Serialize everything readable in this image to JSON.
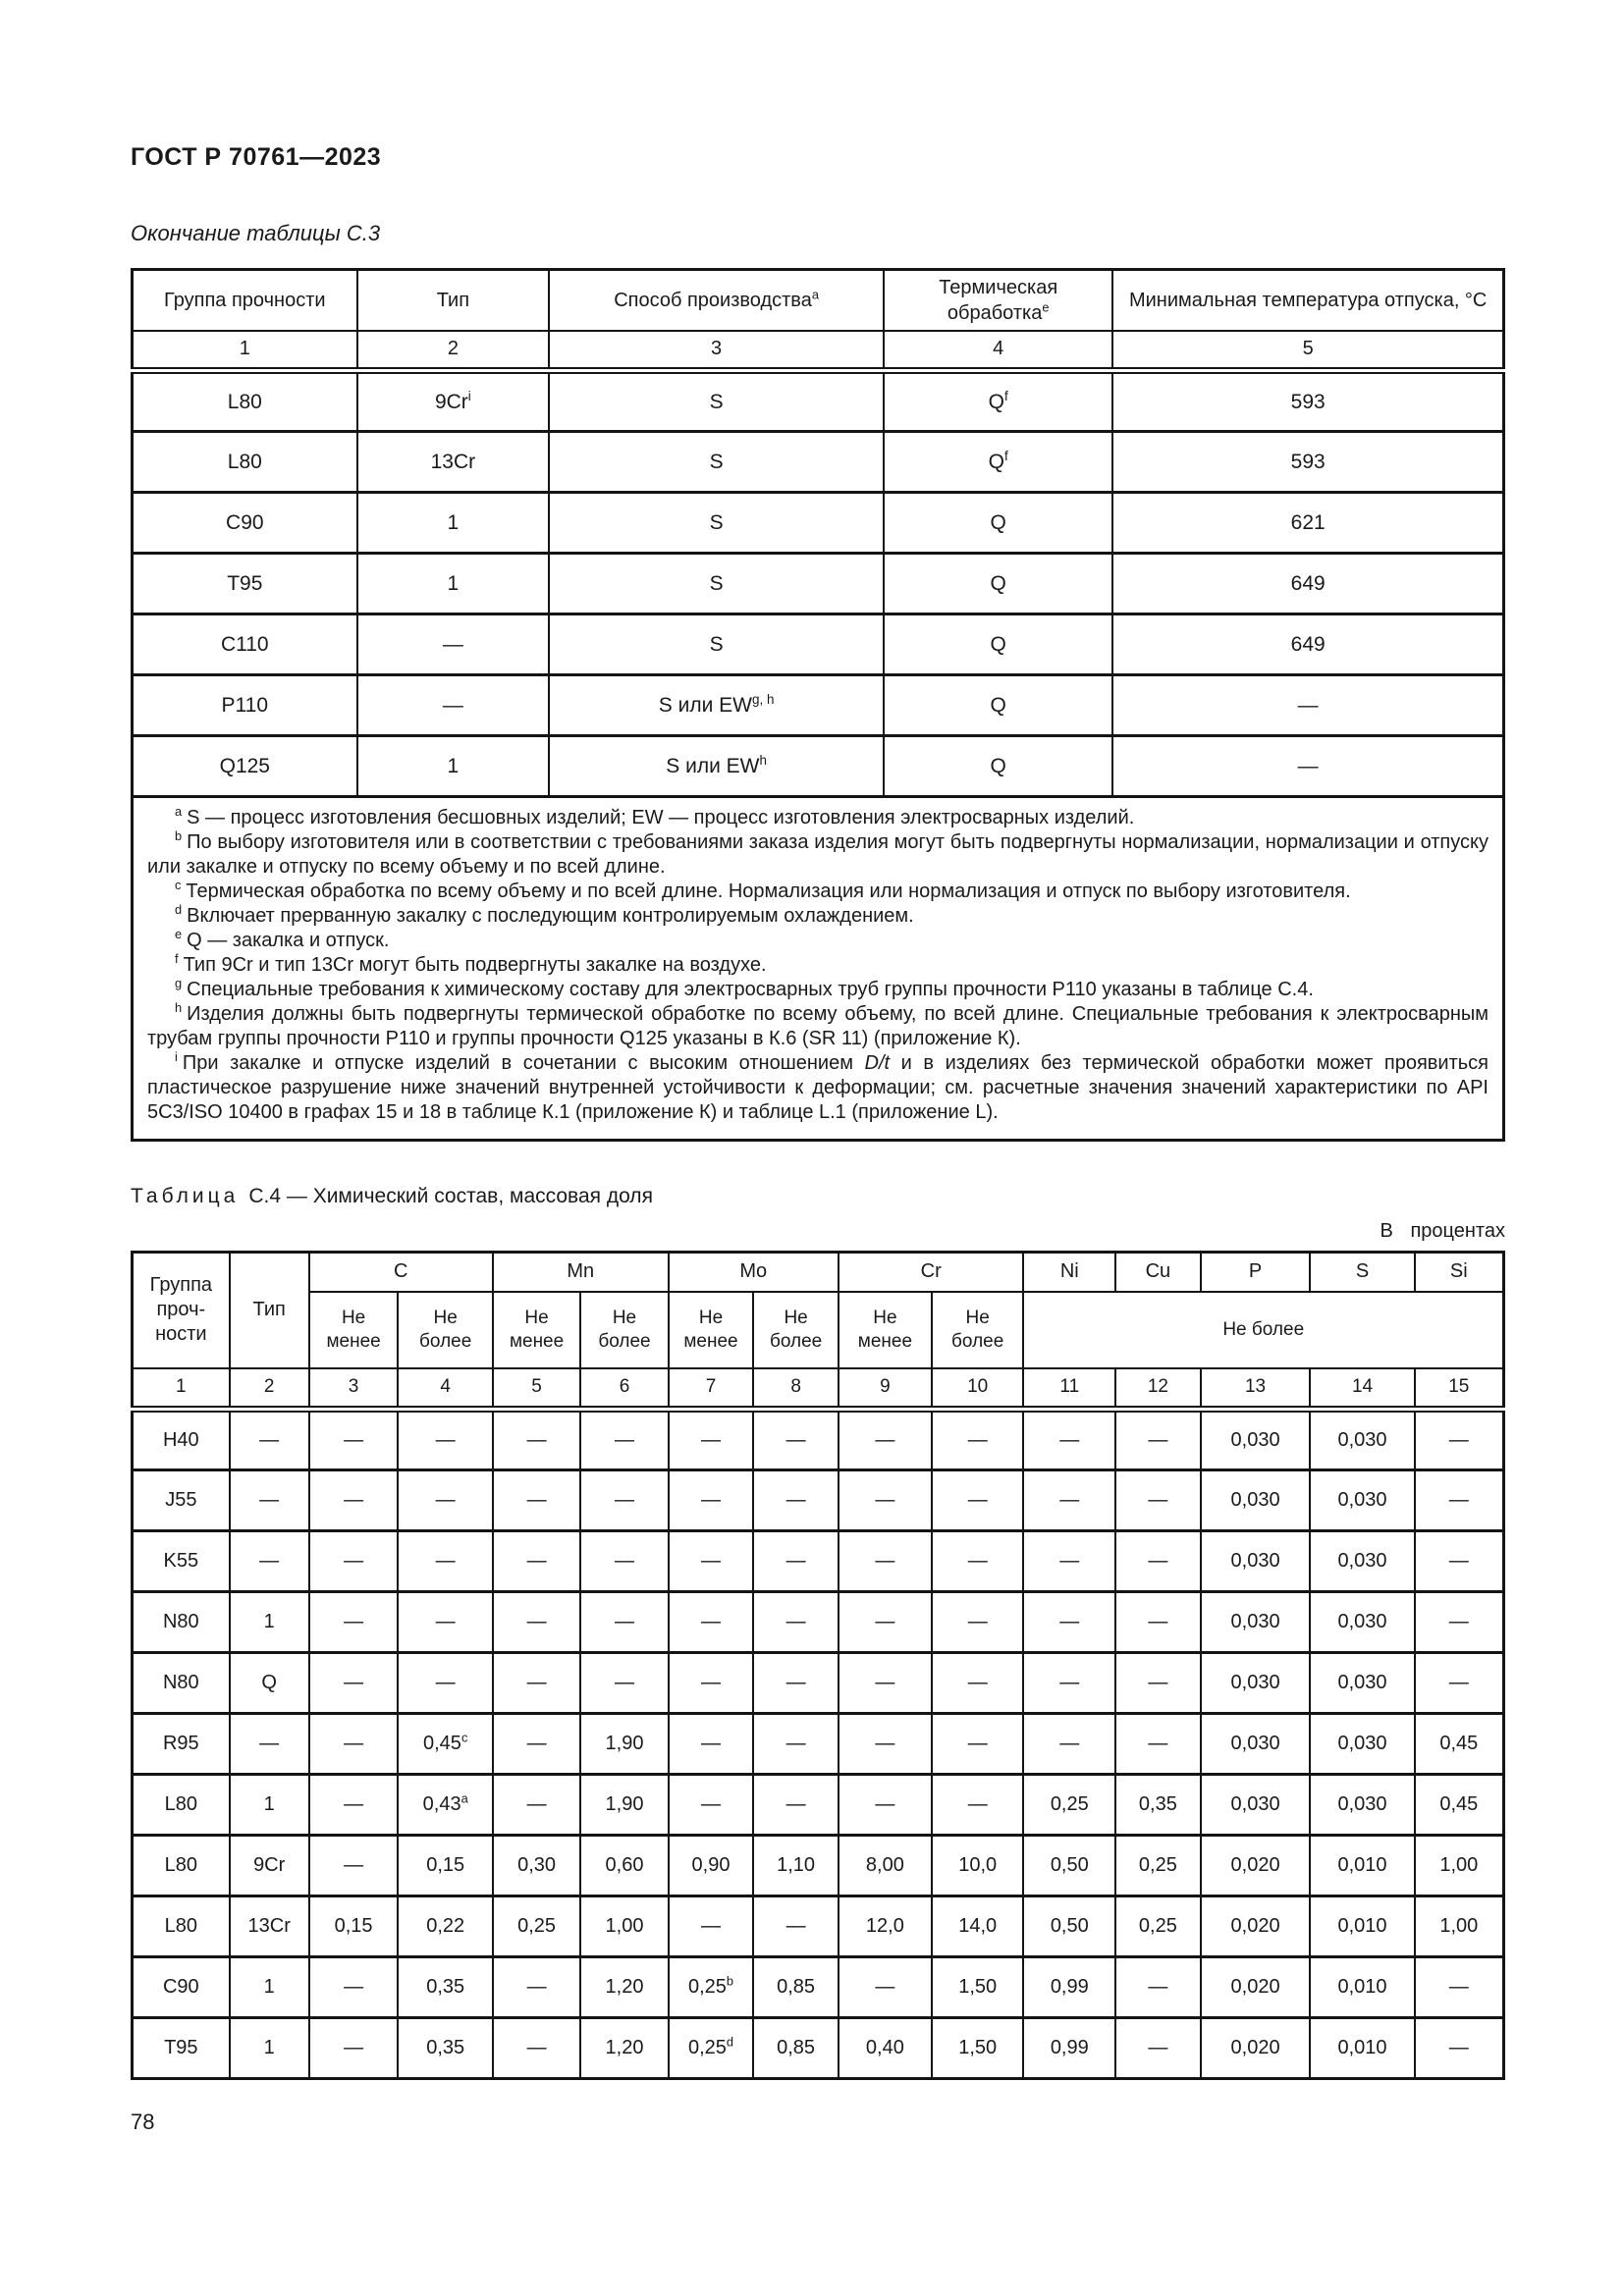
{
  "doc": {
    "header": "ГОСТ Р 70761—2023",
    "c3_caption": "Окончание таблицы С.3",
    "c4_caption_label": "Таблица",
    "c4_caption_text": "С.4 — Химический состав, массовая доля",
    "c4_units_note_word1": "В",
    "c4_units_note_word2": "процентах",
    "page_number": "78"
  },
  "table_c3": {
    "header": [
      "Группа прочности",
      "Тип",
      "Способ производства^a",
      "Термическая\nобработка^e",
      "Минимальная температура отпуска, °С"
    ],
    "column_numbers": [
      "1",
      "2",
      "3",
      "4",
      "5"
    ],
    "rows": [
      [
        "L80",
        "9Cr^i",
        "S",
        "Q^f",
        "593"
      ],
      [
        "L80",
        "13Cr",
        "S",
        "Q^f",
        "593"
      ],
      [
        "C90",
        "1",
        "S",
        "Q",
        "621"
      ],
      [
        "T95",
        "1",
        "S",
        "Q",
        "649"
      ],
      [
        "C110",
        "—",
        "S",
        "Q",
        "649"
      ],
      [
        "P110",
        "—",
        "S или EW^g, h",
        "Q",
        "—"
      ],
      [
        "Q125",
        "1",
        "S или EW^h",
        "Q",
        "—"
      ]
    ],
    "footnotes": [
      {
        "mark": "a",
        "text": "S — процесс изготовления бесшовных изделий; EW — процесс изготовления электросварных изделий."
      },
      {
        "mark": "b",
        "text": "По выбору изготовителя или в соответствии с требованиями заказа изделия могут быть подвергнуты нормализации, нормализации и отпуску или закалке и отпуску по всему объему и по всей длине."
      },
      {
        "mark": "c",
        "text": "Термическая обработка по всему объему и по всей длине. Нормализация или нормализация и отпуск по выбору изготовителя."
      },
      {
        "mark": "d",
        "text": "Включает прерванную закалку с последующим контролируемым охлаждением."
      },
      {
        "mark": "e",
        "text": "Q — закалка и отпуск."
      },
      {
        "mark": "f",
        "text": "Тип 9Cr и тип 13Cr могут быть подвергнуты закалке на воздухе."
      },
      {
        "mark": "g",
        "text": "Специальные требования к химическому составу для электросварных труб группы прочности Р110 указаны в таблице С.4."
      },
      {
        "mark": "h",
        "text": "Изделия должны быть подвергнуты термической обработке по всему объему, по всей длине. Специальные требования к электросварным трубам группы прочности Р110 и группы прочности Q125 указаны в К.6 (SR 11) (приложение К)."
      },
      {
        "mark": "i",
        "text": "При закалке и отпуске изделий в сочетании с высоким отношением *D/t* и в изделиях без термической обработки может проявиться пластическое разрушение ниже значений внутренней устойчивости к деформации; см. расчетные значения значений характеристики по API 5C3/ISO 10400 в графах 15 и 18 в таблице К.1 (приложение К) и таблице L.1 (приложение L)."
      }
    ]
  },
  "table_c4": {
    "header_row1": [
      {
        "t": "Группа\nпроч-\nности",
        "rs": 2,
        "cls": "grp"
      },
      {
        "t": "Тип",
        "rs": 2
      },
      {
        "t": "C",
        "cs": 2
      },
      {
        "t": "Mn",
        "cs": 2
      },
      {
        "t": "Mo",
        "cs": 2
      },
      {
        "t": "Cr",
        "cs": 2
      },
      {
        "t": "Ni"
      },
      {
        "t": "Cu"
      },
      {
        "t": "P"
      },
      {
        "t": "S"
      },
      {
        "t": "Si"
      }
    ],
    "header_row2": [
      {
        "t": "Не\nменее"
      },
      {
        "t": "Не\nболее"
      },
      {
        "t": "Не\nменее"
      },
      {
        "t": "Не\nболее"
      },
      {
        "t": "Не\nменее"
      },
      {
        "t": "Не\nболее"
      },
      {
        "t": "Не\nменее"
      },
      {
        "t": "Не\nболее"
      },
      {
        "t": "Не более",
        "cs": 5
      }
    ],
    "column_numbers": [
      "1",
      "2",
      "3",
      "4",
      "5",
      "6",
      "7",
      "8",
      "9",
      "10",
      "11",
      "12",
      "13",
      "14",
      "15"
    ],
    "rows": [
      [
        "H40",
        "—",
        "—",
        "—",
        "—",
        "—",
        "—",
        "—",
        "—",
        "—",
        "—",
        "—",
        "0,030",
        "0,030",
        "—"
      ],
      [
        "J55",
        "—",
        "—",
        "—",
        "—",
        "—",
        "—",
        "—",
        "—",
        "—",
        "—",
        "—",
        "0,030",
        "0,030",
        "—"
      ],
      [
        "K55",
        "—",
        "—",
        "—",
        "—",
        "—",
        "—",
        "—",
        "—",
        "—",
        "—",
        "—",
        "0,030",
        "0,030",
        "—"
      ],
      [
        "N80",
        "1",
        "—",
        "—",
        "—",
        "—",
        "—",
        "—",
        "—",
        "—",
        "—",
        "—",
        "0,030",
        "0,030",
        "—"
      ],
      [
        "N80",
        "Q",
        "—",
        "—",
        "—",
        "—",
        "—",
        "—",
        "—",
        "—",
        "—",
        "—",
        "0,030",
        "0,030",
        "—"
      ],
      [
        "R95",
        "—",
        "—",
        "0,45^c",
        "—",
        "1,90",
        "—",
        "—",
        "—",
        "—",
        "—",
        "—",
        "0,030",
        "0,030",
        "0,45"
      ],
      [
        "L80",
        "1",
        "—",
        "0,43^a",
        "—",
        "1,90",
        "—",
        "—",
        "—",
        "—",
        "0,25",
        "0,35",
        "0,030",
        "0,030",
        "0,45"
      ],
      [
        "L80",
        "9Cr",
        "—",
        "0,15",
        "0,30",
        "0,60",
        "0,90",
        "1,10",
        "8,00",
        "10,0",
        "0,50",
        "0,25",
        "0,020",
        "0,010",
        "1,00"
      ],
      [
        "L80",
        "13Cr",
        "0,15",
        "0,22",
        "0,25",
        "1,00",
        "—",
        "—",
        "12,0",
        "14,0",
        "0,50",
        "0,25",
        "0,020",
        "0,010",
        "1,00"
      ],
      [
        "C90",
        "1",
        "—",
        "0,35",
        "—",
        "1,20",
        "0,25^b",
        "0,85",
        "—",
        "1,50",
        "0,99",
        "—",
        "0,020",
        "0,010",
        "—"
      ],
      [
        "T95",
        "1",
        "—",
        "0,35",
        "—",
        "1,20",
        "0,25^d",
        "0,85",
        "0,40",
        "1,50",
        "0,99",
        "—",
        "0,020",
        "0,010",
        "—"
      ]
    ]
  }
}
